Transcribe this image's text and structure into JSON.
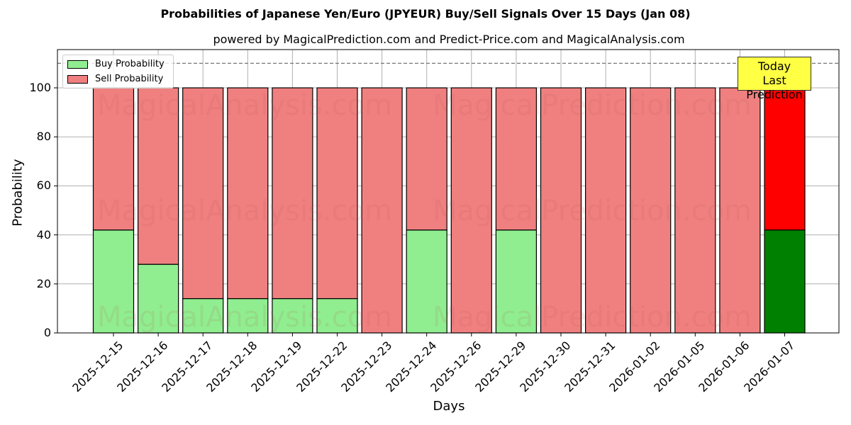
{
  "title": "Probabilities of Japanese Yen/Euro (JPYEUR) Buy/Sell Signals Over 15 Days (Jan 08)",
  "subtitle": "powered by MagicalPrediction.com and Predict-Price.com and MagicalAnalysis.com",
  "watermarks": [
    "MagicalAnalysis.com",
    "MagicalPrediction.com"
  ],
  "annotation": {
    "line1": "Today",
    "line2": "Last Prediction"
  },
  "legend": {
    "buy": "Buy Probability",
    "sell": "Sell Probability"
  },
  "chart_data": {
    "type": "bar",
    "stacked": true,
    "title": "Probabilities of Japanese Yen/Euro (JPYEUR) Buy/Sell Signals Over 15 Days (Jan 08)",
    "subtitle": "powered by MagicalPrediction.com and Predict-Price.com and MagicalAnalysis.com",
    "xlabel": "Days",
    "ylabel": "Probability",
    "ylim": [
      0,
      115
    ],
    "yticks": [
      0,
      20,
      40,
      60,
      80,
      100
    ],
    "grid": true,
    "legend_position": "upper left",
    "reference_line": 110,
    "categories": [
      "2025-12-15",
      "2025-12-16",
      "2025-12-17",
      "2025-12-18",
      "2025-12-19",
      "2025-12-22",
      "2025-12-23",
      "2025-12-24",
      "2025-12-26",
      "2025-12-29",
      "2025-12-30",
      "2025-12-31",
      "2026-01-02",
      "2026-01-05",
      "2026-01-06",
      "2026-01-07"
    ],
    "series": [
      {
        "name": "Buy Probability",
        "color": "#90ee90",
        "values": [
          42,
          28,
          14,
          14,
          14,
          14,
          0,
          42,
          0,
          42,
          0,
          0,
          0,
          0,
          0,
          42
        ]
      },
      {
        "name": "Sell Probability",
        "color": "#f08080",
        "values": [
          58,
          72,
          86,
          86,
          86,
          86,
          100,
          58,
          100,
          58,
          100,
          100,
          100,
          100,
          100,
          58
        ]
      }
    ],
    "highlight": {
      "index": 15,
      "buy_color": "#008000",
      "sell_color": "#ff0000",
      "label": "Today Last Prediction"
    }
  }
}
